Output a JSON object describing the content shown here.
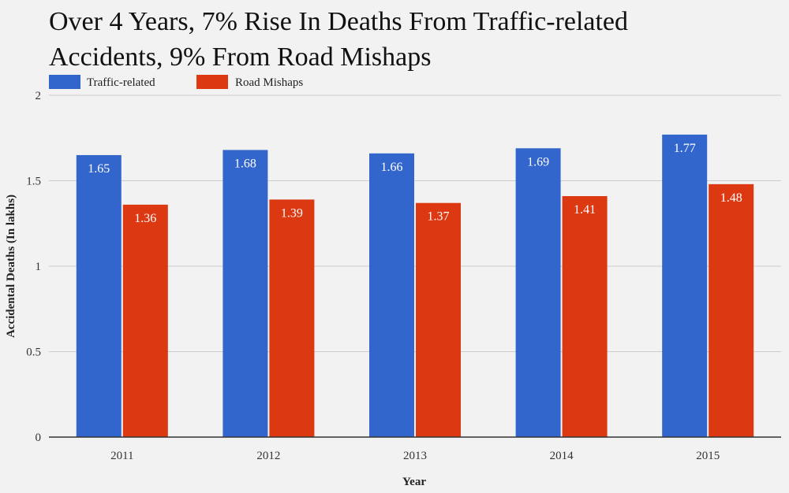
{
  "chart_data": {
    "type": "bar",
    "title_line1": "Over 4 Years, 7% Rise In Deaths From Traffic-related",
    "title_line2": "Accidents, 9% From Road Mishaps",
    "xlabel": "Year",
    "ylabel": "Accidental Deaths (In lakhs)",
    "categories": [
      "2011",
      "2012",
      "2013",
      "2014",
      "2015"
    ],
    "series": [
      {
        "name": "Traffic-related",
        "color": "#3366cc",
        "values": [
          1.65,
          1.68,
          1.66,
          1.69,
          1.77
        ],
        "labels": [
          "1.65",
          "1.68",
          "1.66",
          "1.69",
          "1.77"
        ]
      },
      {
        "name": "Road Mishaps",
        "color": "#dc3912",
        "values": [
          1.36,
          1.39,
          1.37,
          1.41,
          1.48
        ],
        "labels": [
          "1.36",
          "1.39",
          "1.37",
          "1.41",
          "1.48"
        ]
      }
    ],
    "ylim": [
      0,
      2
    ],
    "yticks": [
      0,
      0.5,
      1,
      1.5,
      2
    ],
    "ytick_labels": [
      "0",
      "0.5",
      "1",
      "1.5",
      "2"
    ],
    "grid": true,
    "legend_position": "top-left"
  }
}
